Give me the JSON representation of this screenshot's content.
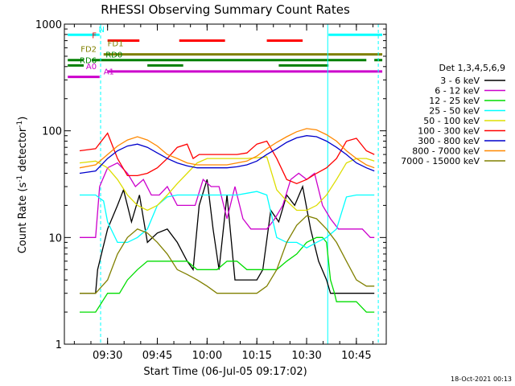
{
  "chart_data": {
    "type": "line",
    "title": "RHESSI Observing Summary Count Rates",
    "xlabel": "Start Time (06-Jul-05 09:17:02)",
    "ylabel_main": "Count Rate (s",
    "ylabel_sup": "-1",
    "ylabel_mid": " detector",
    "ylabel_sup2": "-1",
    "ylabel_end": ")",
    "yscale": "log",
    "ylim": [
      1,
      1000
    ],
    "xlim_minutes": [
      9.283,
      10.9
    ],
    "xlim_clock": [
      "09:17",
      "10:54"
    ],
    "x_ticks": [
      {
        "t": 9.5,
        "label": "09:30"
      },
      {
        "t": 9.75,
        "label": "09:45"
      },
      {
        "t": 10.0,
        "label": "10:00"
      },
      {
        "t": 10.25,
        "label": "10:15"
      },
      {
        "t": 10.5,
        "label": "10:30"
      },
      {
        "t": 10.75,
        "label": "10:45"
      }
    ],
    "y_ticks": [
      {
        "v": 1,
        "label": "1"
      },
      {
        "v": 10,
        "label": "10"
      },
      {
        "v": 100,
        "label": "100"
      },
      {
        "v": 1000,
        "label": "1000"
      }
    ],
    "legend_title": "Det 1,3,4,5,6,9",
    "legend_position": "right",
    "series": [
      {
        "name": "3 - 6 keV",
        "color": "#000000",
        "x": [
          9.36,
          9.44,
          9.45,
          9.5,
          9.55,
          9.58,
          9.62,
          9.66,
          9.7,
          9.75,
          9.8,
          9.85,
          9.9,
          9.93,
          9.96,
          10.0,
          10.03,
          10.06,
          10.1,
          10.14,
          10.18,
          10.22,
          10.25,
          10.28,
          10.32,
          10.36,
          10.4,
          10.44,
          10.48,
          10.52,
          10.56,
          10.6,
          10.62,
          10.65,
          10.68,
          10.72,
          10.76,
          10.8,
          10.84
        ],
        "y": [
          3,
          3,
          5,
          12,
          20,
          28,
          14,
          25,
          9,
          11,
          12,
          9,
          6,
          5,
          20,
          35,
          12,
          5,
          25,
          4,
          4,
          4,
          4,
          5,
          18,
          14,
          25,
          20,
          30,
          12,
          6,
          4,
          3,
          3,
          3,
          3,
          3,
          3,
          3
        ]
      },
      {
        "name": "6 - 12 keV",
        "color": "#cc00cc",
        "x": [
          9.36,
          9.44,
          9.46,
          9.5,
          9.55,
          9.6,
          9.64,
          9.68,
          9.72,
          9.76,
          9.8,
          9.85,
          9.9,
          9.94,
          9.98,
          10.02,
          10.06,
          10.1,
          10.14,
          10.18,
          10.22,
          10.26,
          10.3,
          10.34,
          10.38,
          10.42,
          10.46,
          10.5,
          10.54,
          10.58,
          10.62,
          10.66,
          10.7,
          10.74,
          10.78,
          10.82,
          10.84
        ],
        "y": [
          10,
          10,
          30,
          45,
          50,
          40,
          30,
          35,
          25,
          25,
          30,
          20,
          20,
          20,
          35,
          30,
          30,
          15,
          30,
          15,
          12,
          12,
          12,
          15,
          20,
          35,
          40,
          35,
          40,
          20,
          15,
          12,
          12,
          12,
          12,
          10,
          10
        ]
      },
      {
        "name": "12 - 25 keV",
        "color": "#00dd00",
        "x": [
          9.36,
          9.44,
          9.5,
          9.56,
          9.6,
          9.65,
          9.7,
          9.75,
          9.8,
          9.85,
          9.9,
          9.95,
          10.0,
          10.05,
          10.1,
          10.15,
          10.2,
          10.25,
          10.3,
          10.35,
          10.4,
          10.45,
          10.5,
          10.55,
          10.58,
          10.6,
          10.62,
          10.64,
          10.65,
          10.7,
          10.75,
          10.8,
          10.84
        ],
        "y": [
          2,
          2,
          3,
          3,
          4,
          5,
          6,
          6,
          6,
          6,
          6,
          5,
          5,
          5,
          6,
          6,
          5,
          5,
          5,
          5,
          6,
          7,
          9,
          10,
          10,
          9,
          4,
          3,
          2.5,
          2.5,
          2.5,
          2,
          2
        ]
      },
      {
        "name": "25 - 50 keV",
        "color": "#00ffff",
        "x": [
          9.36,
          9.44,
          9.48,
          9.5,
          9.55,
          9.6,
          9.65,
          9.7,
          9.75,
          9.8,
          9.85,
          9.9,
          9.95,
          10.0,
          10.05,
          10.1,
          10.15,
          10.2,
          10.25,
          10.3,
          10.35,
          10.4,
          10.45,
          10.5,
          10.55,
          10.6,
          10.65,
          10.7,
          10.75,
          10.8,
          10.84
        ],
        "y": [
          25,
          25,
          22,
          14,
          9,
          9,
          10,
          12,
          20,
          24,
          25,
          25,
          25,
          25,
          25,
          25,
          25,
          26,
          27,
          25,
          10,
          9,
          9,
          8,
          9,
          10,
          12,
          24,
          25,
          25,
          25
        ]
      },
      {
        "name": "50 - 100 keV",
        "color": "#dddd00",
        "x": [
          9.36,
          9.44,
          9.5,
          9.55,
          9.6,
          9.65,
          9.7,
          9.75,
          9.8,
          9.85,
          9.9,
          9.95,
          10.0,
          10.05,
          10.1,
          10.15,
          10.2,
          10.25,
          10.3,
          10.35,
          10.4,
          10.45,
          10.5,
          10.55,
          10.6,
          10.65,
          10.7,
          10.75,
          10.8,
          10.84
        ],
        "y": [
          50,
          52,
          45,
          35,
          25,
          20,
          18,
          20,
          25,
          32,
          40,
          50,
          55,
          55,
          55,
          55,
          55,
          56,
          57,
          28,
          22,
          18,
          18,
          20,
          25,
          35,
          50,
          55,
          55,
          52
        ]
      },
      {
        "name": "100 - 300 keV",
        "color": "#ff0000",
        "x": [
          9.36,
          9.44,
          9.5,
          9.55,
          9.6,
          9.65,
          9.7,
          9.75,
          9.8,
          9.85,
          9.9,
          9.93,
          9.96,
          10.0,
          10.05,
          10.1,
          10.15,
          10.2,
          10.25,
          10.3,
          10.35,
          10.4,
          10.45,
          10.5,
          10.55,
          10.6,
          10.65,
          10.7,
          10.75,
          10.8,
          10.84
        ],
        "y": [
          65,
          68,
          95,
          55,
          38,
          38,
          40,
          45,
          55,
          70,
          75,
          55,
          60,
          60,
          60,
          60,
          60,
          62,
          75,
          80,
          55,
          35,
          32,
          35,
          40,
          45,
          55,
          80,
          85,
          65,
          60
        ]
      },
      {
        "name": "300 - 800 keV",
        "color": "#0000cc",
        "x": [
          9.36,
          9.44,
          9.5,
          9.55,
          9.6,
          9.65,
          9.7,
          9.75,
          9.8,
          9.85,
          9.9,
          9.95,
          10.0,
          10.05,
          10.1,
          10.15,
          10.2,
          10.25,
          10.3,
          10.35,
          10.4,
          10.45,
          10.5,
          10.55,
          10.6,
          10.65,
          10.7,
          10.75,
          10.8,
          10.84
        ],
        "y": [
          40,
          42,
          55,
          65,
          72,
          75,
          70,
          62,
          55,
          50,
          47,
          45,
          45,
          45,
          45,
          46,
          48,
          52,
          60,
          68,
          78,
          86,
          90,
          88,
          80,
          70,
          60,
          50,
          45,
          42
        ]
      },
      {
        "name": "800 - 7000 keV",
        "color": "#ff8800",
        "x": [
          9.36,
          9.44,
          9.5,
          9.55,
          9.6,
          9.65,
          9.7,
          9.75,
          9.8,
          9.85,
          9.9,
          9.95,
          10.0,
          10.05,
          10.1,
          10.15,
          10.2,
          10.25,
          10.3,
          10.35,
          10.4,
          10.45,
          10.5,
          10.55,
          10.6,
          10.65,
          10.7,
          10.75,
          10.8,
          10.84
        ],
        "y": [
          45,
          48,
          60,
          72,
          82,
          88,
          82,
          72,
          60,
          55,
          50,
          48,
          48,
          48,
          48,
          50,
          52,
          58,
          68,
          78,
          88,
          98,
          105,
          102,
          92,
          80,
          65,
          55,
          48,
          45
        ]
      },
      {
        "name": "7000 - 15000 keV",
        "color": "#808000",
        "x": [
          9.36,
          9.44,
          9.5,
          9.55,
          9.6,
          9.65,
          9.7,
          9.75,
          9.8,
          9.85,
          9.9,
          9.95,
          10.0,
          10.05,
          10.1,
          10.15,
          10.2,
          10.25,
          10.3,
          10.35,
          10.4,
          10.45,
          10.5,
          10.55,
          10.6,
          10.65,
          10.7,
          10.75,
          10.8,
          10.84
        ],
        "y": [
          3,
          3,
          4,
          7,
          10,
          12,
          11,
          9,
          7,
          5,
          4.5,
          4,
          3.5,
          3,
          3,
          3,
          3,
          3,
          3.5,
          5,
          9,
          13,
          16,
          15,
          12,
          9,
          6,
          4,
          3.5,
          3.5
        ]
      }
    ],
    "vertical_lines": [
      {
        "t": 9.283,
        "color": "#00ffff",
        "style": "solid"
      },
      {
        "t": 9.465,
        "color": "#00ffff",
        "style": "dashed"
      },
      {
        "t": 10.606,
        "color": "#00ffff",
        "style": "solid"
      },
      {
        "t": 10.86,
        "color": "#00ffff",
        "style": "dashed"
      }
    ],
    "flags": [
      {
        "label": "N",
        "color": "#00ffff",
        "y": 795,
        "segments": [
          [
            9.3,
            9.46
          ],
          [
            10.61,
            10.88
          ]
        ]
      },
      {
        "label": "F",
        "color": "#ff0000",
        "y": 700,
        "segments": [
          [
            9.5,
            9.66
          ],
          [
            9.86,
            10.09
          ],
          [
            10.3,
            10.48
          ]
        ]
      },
      {
        "label": "FD1",
        "color": "#808000",
        "y": 590,
        "segments": []
      },
      {
        "label": "FD2",
        "color": "#808000",
        "y": 520,
        "segments": [
          [
            9.48,
            10.88
          ]
        ]
      },
      {
        "label": "RD0",
        "color": "#008000",
        "y": 460,
        "segments": [
          [
            9.3,
            9.38
          ],
          [
            9.42,
            10.8
          ],
          [
            10.84,
            10.88
          ]
        ]
      },
      {
        "label": "RD6",
        "color": "#008000",
        "y": 410,
        "segments": [
          [
            9.3,
            9.38
          ],
          [
            9.7,
            9.88
          ],
          [
            10.36,
            10.61
          ]
        ]
      },
      {
        "label": "A0",
        "color": "#cc00cc",
        "y": 360,
        "segments": [
          [
            9.5,
            10.88
          ]
        ]
      },
      {
        "label": "A1",
        "color": "#cc00cc",
        "y": 320,
        "segments": [
          [
            9.3,
            9.46
          ]
        ]
      }
    ],
    "footer_stamp": "18-Oct-2021 00:13"
  }
}
